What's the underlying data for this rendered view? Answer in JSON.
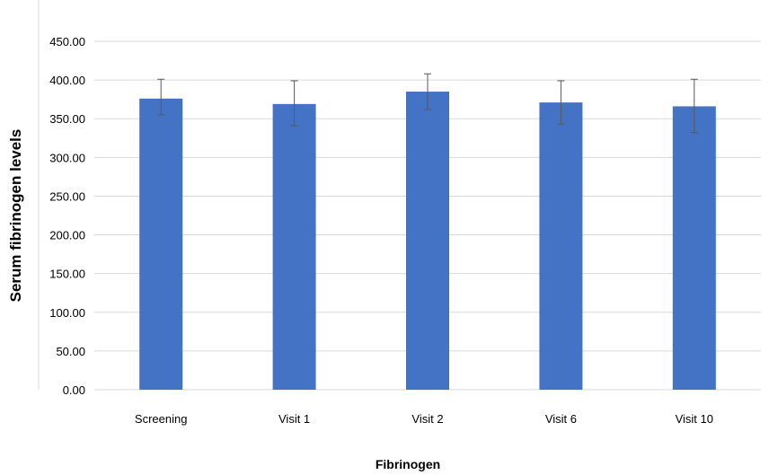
{
  "chart_data": {
    "type": "bar",
    "title": "",
    "xlabel": "Fibrinogen",
    "ylabel": "Serum fibrinogen levels",
    "categories": [
      "Screening",
      "Visit 1",
      "Visit 2",
      "Visit 6",
      "Visit 10"
    ],
    "values": [
      376,
      369,
      385,
      371,
      366
    ],
    "error_plus": [
      25,
      30,
      23,
      28,
      35
    ],
    "error_minus": [
      21,
      28,
      23,
      28,
      34
    ],
    "ylim": [
      0,
      450
    ],
    "yticks": [
      "0.00",
      "50.00",
      "100.00",
      "150.00",
      "200.00",
      "250.00",
      "300.00",
      "350.00",
      "400.00",
      "450.00"
    ],
    "grid": true,
    "legend": "none",
    "bar_color": "#4472C4",
    "grid_color": "#D9D9D9",
    "errorbar_color": "#595959"
  }
}
